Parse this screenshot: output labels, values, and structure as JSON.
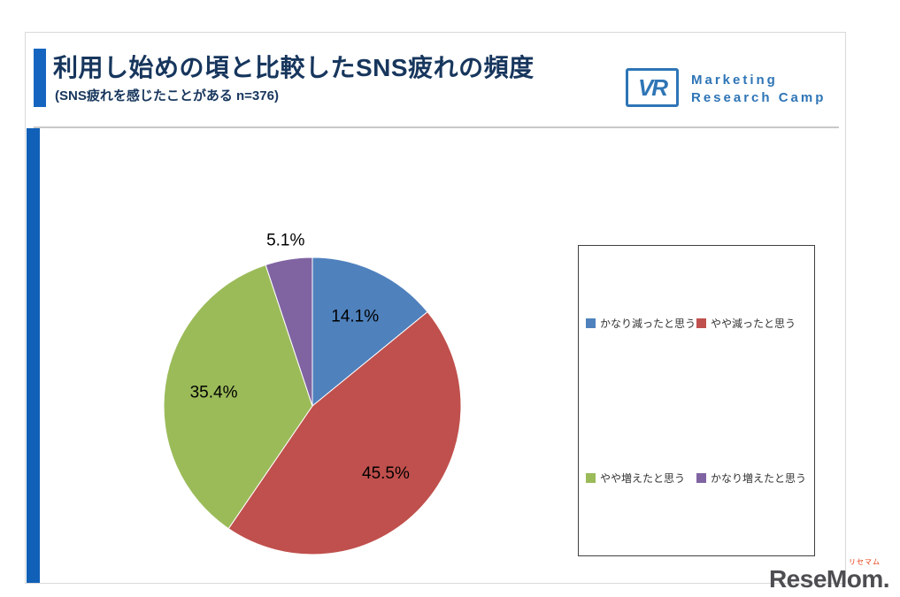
{
  "header": {
    "title": "利用し始めの頃と比較したSNS疲れの頻度",
    "subtitle": "(SNS疲れを感じたことがある n=376)"
  },
  "logo": {
    "mark": "VR",
    "line1": "Marketing",
    "line2": "Research Camp",
    "color": "#2e75b6"
  },
  "chart_data": {
    "type": "pie",
    "title": "利用し始めの頃と比較したSNS疲れの頻度",
    "population_note": "SNS疲れを感じたことがある n=376",
    "start_angle_deg": 0,
    "direction": "clockwise",
    "legend_position": "right",
    "series": [
      {
        "label": "かなり減ったと思う",
        "value": 14.1,
        "color": "#4f81bd"
      },
      {
        "label": "やや減ったと思う",
        "value": 45.5,
        "color": "#c0504d"
      },
      {
        "label": "やや増えたと思う",
        "value": 35.4,
        "color": "#9bbb59"
      },
      {
        "label": "かなり増えたと思う",
        "value": 5.1,
        "color": "#8064a2"
      }
    ]
  },
  "footer": {
    "brand": "ReseMom.",
    "brand_ruby": "リセマム"
  }
}
